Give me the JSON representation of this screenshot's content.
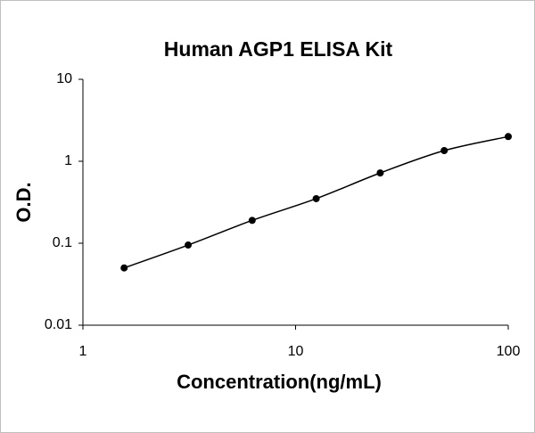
{
  "chart_data": {
    "type": "line",
    "title": "Human AGP1 ELISA Kit",
    "x_label": "Concentration(ng/mL)",
    "y_label": "O.D.",
    "x": [
      1.5625,
      3.125,
      6.25,
      12.5,
      25,
      50,
      100
    ],
    "values": [
      0.05,
      0.095,
      0.19,
      0.35,
      0.72,
      1.35,
      2.0
    ],
    "color": "#000000",
    "xlim": [
      1,
      100
    ],
    "xticks": [
      1,
      10,
      100
    ],
    "ylim": [
      0.01,
      10
    ],
    "yticks": [
      0.01,
      0.1,
      1,
      10
    ],
    "x_log": true,
    "y_log": true,
    "smooth": true,
    "markers": true
  }
}
